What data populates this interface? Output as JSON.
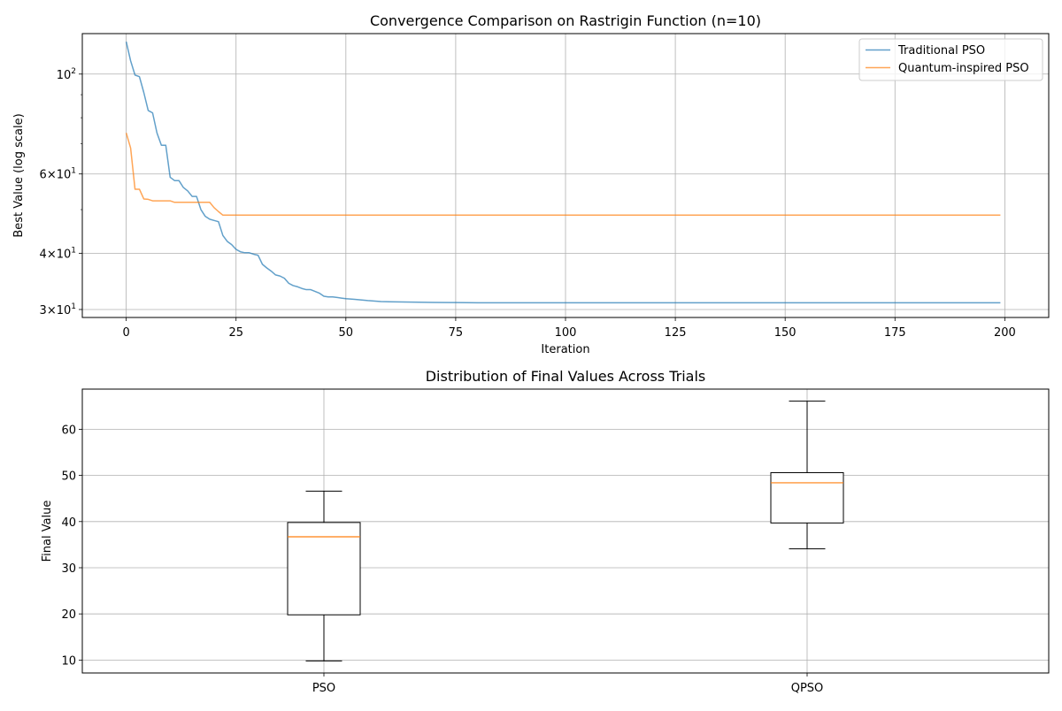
{
  "chart_data": [
    {
      "type": "line",
      "title": "Convergence Comparison on Rastrigin Function (n=10)",
      "xlabel": "Iteration",
      "ylabel": "Best Value (log scale)",
      "yscale": "log",
      "xlim": [
        -10,
        210
      ],
      "ylim": [
        28.8,
        123
      ],
      "grid": true,
      "legend_position": "top-right",
      "x_ticks": [
        {
          "value": 0,
          "label": "0"
        },
        {
          "value": 25,
          "label": "25"
        },
        {
          "value": 50,
          "label": "50"
        },
        {
          "value": 75,
          "label": "75"
        },
        {
          "value": 100,
          "label": "100"
        },
        {
          "value": 125,
          "label": "125"
        },
        {
          "value": 150,
          "label": "150"
        },
        {
          "value": 175,
          "label": "175"
        },
        {
          "value": 200,
          "label": "200"
        }
      ],
      "y_ticks": [
        {
          "value": 30,
          "base": "3",
          "exp": "1"
        },
        {
          "value": 40,
          "base": "4",
          "exp": "1"
        },
        {
          "value": 60,
          "base": "6",
          "exp": "1"
        },
        {
          "value": 100,
          "base": "10",
          "exp": "2"
        }
      ],
      "y_minor_ticks": [
        50,
        70,
        80,
        90
      ],
      "series": [
        {
          "name": "Traditional PSO",
          "color": "#1f77b4",
          "points": [
            [
              0,
              118
            ],
            [
              1,
              107
            ],
            [
              2,
              99.5
            ],
            [
              3,
              98.7
            ],
            [
              4,
              91
            ],
            [
              5,
              83
            ],
            [
              6,
              82
            ],
            [
              7,
              74
            ],
            [
              8,
              69.5
            ],
            [
              9,
              69.5
            ],
            [
              10,
              59
            ],
            [
              11,
              58
            ],
            [
              12,
              58
            ],
            [
              13,
              56
            ],
            [
              14,
              55
            ],
            [
              15,
              53.5
            ],
            [
              16,
              53.5
            ],
            [
              17,
              50
            ],
            [
              18,
              48.3
            ],
            [
              19,
              47.6
            ],
            [
              20,
              47.3
            ],
            [
              21,
              47
            ],
            [
              22,
              43.8
            ],
            [
              23,
              42.5
            ],
            [
              24,
              41.8
            ],
            [
              25,
              40.8
            ],
            [
              26,
              40.3
            ],
            [
              27,
              40.1
            ],
            [
              28,
              40.1
            ],
            [
              29,
              39.8
            ],
            [
              30,
              39.6
            ],
            [
              31,
              37.8
            ],
            [
              32,
              37.1
            ],
            [
              33,
              36.5
            ],
            [
              34,
              35.8
            ],
            [
              35,
              35.6
            ],
            [
              36,
              35.2
            ],
            [
              37,
              34.3
            ],
            [
              38,
              33.9
            ],
            [
              39,
              33.7
            ],
            [
              40,
              33.4
            ],
            [
              41,
              33.2
            ],
            [
              42,
              33.2
            ],
            [
              43,
              32.9
            ],
            [
              44,
              32.6
            ],
            [
              45,
              32.1
            ],
            [
              46,
              32.0
            ],
            [
              47,
              32.0
            ],
            [
              48,
              31.9
            ],
            [
              49,
              31.8
            ],
            [
              50,
              31.7
            ],
            [
              52,
              31.6
            ],
            [
              55,
              31.4
            ],
            [
              58,
              31.25
            ],
            [
              60,
              31.2
            ],
            [
              65,
              31.15
            ],
            [
              70,
              31.1
            ],
            [
              75,
              31.08
            ],
            [
              80,
              31.05
            ],
            [
              90,
              31.05
            ],
            [
              100,
              31.05
            ],
            [
              125,
              31.05
            ],
            [
              150,
              31.05
            ],
            [
              175,
              31.05
            ],
            [
              199,
              31.05
            ]
          ]
        },
        {
          "name": "Quantum-inspired PSO",
          "color": "#ff7f0e",
          "points": [
            [
              0,
              74
            ],
            [
              1,
              68.5
            ],
            [
              2,
              55.5
            ],
            [
              3,
              55.5
            ],
            [
              4,
              52.8
            ],
            [
              5,
              52.7
            ],
            [
              6,
              52.3
            ],
            [
              7,
              52.3
            ],
            [
              8,
              52.3
            ],
            [
              9,
              52.3
            ],
            [
              10,
              52.3
            ],
            [
              11,
              51.9
            ],
            [
              12,
              51.9
            ],
            [
              13,
              51.9
            ],
            [
              14,
              51.9
            ],
            [
              15,
              51.9
            ],
            [
              16,
              51.9
            ],
            [
              17,
              51.9
            ],
            [
              18,
              51.9
            ],
            [
              19,
              51.9
            ],
            [
              20,
              50.5
            ],
            [
              21,
              49.5
            ],
            [
              22,
              48.6
            ],
            [
              23,
              48.6
            ],
            [
              50,
              48.6
            ],
            [
              100,
              48.6
            ],
            [
              150,
              48.6
            ],
            [
              199,
              48.6
            ]
          ]
        }
      ]
    },
    {
      "type": "box",
      "title": "Distribution of Final Values Across Trials",
      "xlabel": "",
      "ylabel": "Final Value",
      "ylim": [
        7.2,
        68.7
      ],
      "grid": true,
      "categories": [
        "PSO",
        "QPSO"
      ],
      "y_ticks": [
        10,
        20,
        30,
        40,
        50,
        60
      ],
      "median_color": "#ff7f0e",
      "boxes": [
        {
          "label": "PSO",
          "whisker_low": 9.8,
          "q1": 19.8,
          "median": 36.7,
          "q3": 39.8,
          "whisker_high": 46.6
        },
        {
          "label": "QPSO",
          "whisker_low": 34.1,
          "q1": 39.7,
          "median": 48.4,
          "q3": 50.6,
          "whisker_high": 66.1
        }
      ]
    }
  ]
}
